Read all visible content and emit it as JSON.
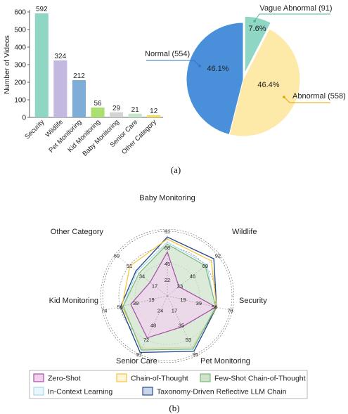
{
  "chart_data": [
    {
      "type": "bar",
      "ylabel": "Number of Videos",
      "ylim": [
        0,
        600
      ],
      "yticks": [
        0,
        100,
        200,
        300,
        400,
        500,
        600
      ],
      "categories": [
        "Security",
        "Wildlife",
        "Pet Monitoring",
        "Kid Monitoring",
        "Baby Monitoring",
        "Senior Care",
        "Other Category"
      ],
      "values": [
        592,
        324,
        212,
        56,
        29,
        21,
        12
      ],
      "colors": [
        "#8fd6c5",
        "#c3b8df",
        "#7eaed8",
        "#a9e070",
        "#d4d4d4",
        "#c3e6c9",
        "#f5df5a"
      ]
    },
    {
      "type": "pie",
      "slices": [
        {
          "label": "Vague Abnormal (91)",
          "value": 91,
          "pct": "7.6%",
          "color": "#8fd6c5",
          "exploded": true
        },
        {
          "label": "Abnormal (558)",
          "value": 558,
          "pct": "46.4%",
          "color": "#fde9a8"
        },
        {
          "label": "Normal (554)",
          "value": 554,
          "pct": "46.1%",
          "color": "#4a8fd9"
        }
      ]
    },
    {
      "type": "radar",
      "axes": [
        "Baby Monitoring",
        "Wildlife",
        "Security",
        "Pet Monitoring",
        "Senior Care",
        "Kid Monitoring",
        "Other Category"
      ],
      "max": 100,
      "series": [
        {
          "name": "Zero-Shot",
          "values": [
            68,
            23,
            77,
            53,
            72,
            58,
            34
          ],
          "stroke": "#a64ca6",
          "fill": "#f0d2ec"
        },
        {
          "name": "Chain-of-Thought",
          "values": [
            88,
            87,
            78,
            88,
            90,
            72,
            74
          ],
          "stroke": "#f2c332",
          "fill": "none"
        },
        {
          "name": "Few-Shot Chain-of-Thought",
          "values": [
            80,
            75,
            77,
            91,
            93,
            70,
            56
          ],
          "stroke": "#7ab87a",
          "fill": "#cfe3cc"
        },
        {
          "name": "In-Context Learning",
          "values": [
            83,
            78,
            76,
            92,
            92,
            70,
            60
          ],
          "stroke": "#a9d8ee",
          "fill": "none"
        },
        {
          "name": "Taxonomy-Driven Reflective LLM Chain",
          "values": [
            91,
            92,
            78,
            95,
            97,
            74,
            62
          ],
          "stroke": "#2b4e8a",
          "fill": "none"
        }
      ],
      "value_labels": [
        [
          "91",
          "68",
          "45",
          "22"
        ],
        [
          "92",
          "69",
          "46",
          "23"
        ],
        [
          "78",
          "58",
          "39",
          "19"
        ],
        [
          "95",
          "53",
          "35",
          "17"
        ],
        [
          "97",
          "72",
          "48",
          "24"
        ],
        [
          "74",
          "58",
          "39",
          "19"
        ],
        [
          "69",
          "51",
          "34",
          "17"
        ]
      ]
    }
  ],
  "captions": {
    "a": "(a)",
    "b": "(b)"
  }
}
